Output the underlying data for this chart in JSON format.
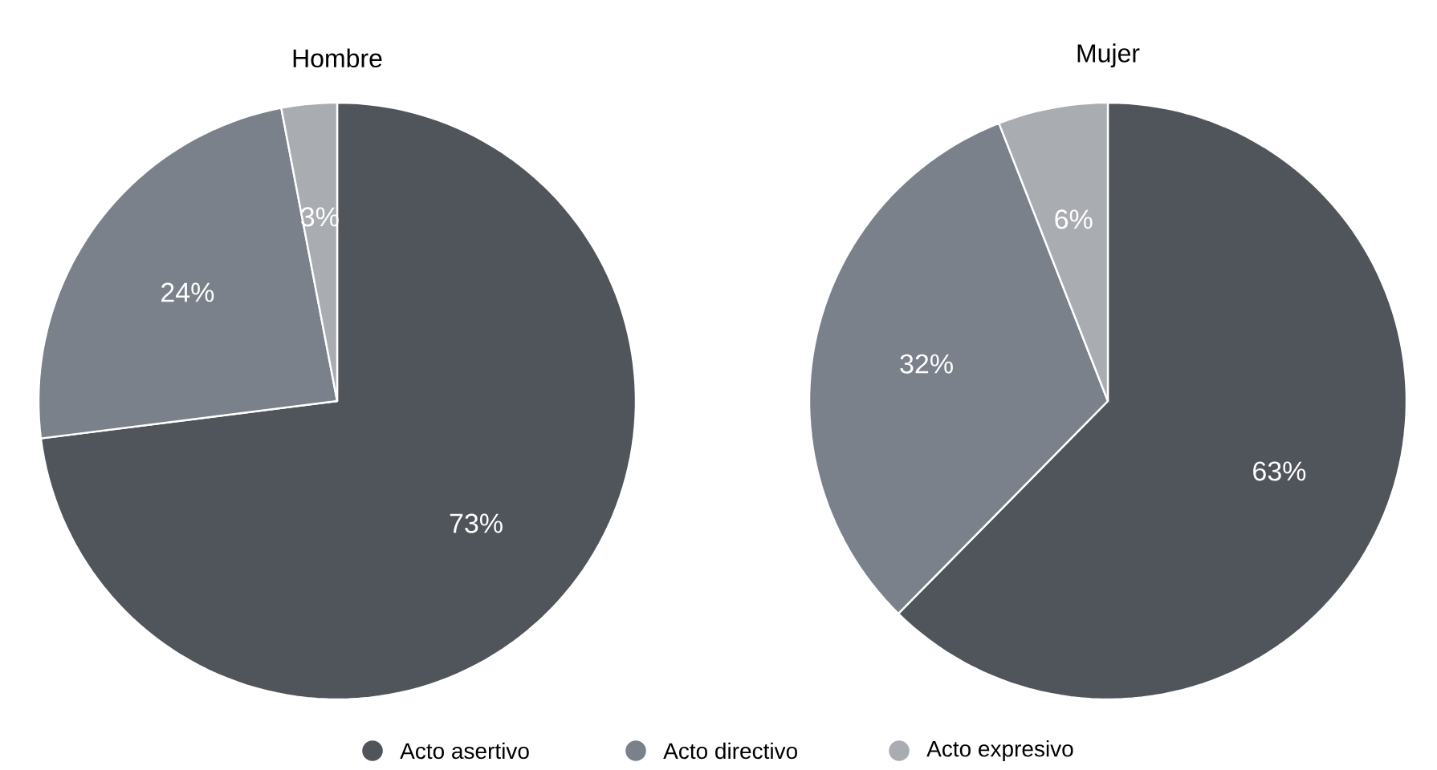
{
  "chart_data": [
    {
      "type": "pie",
      "title": "Hombre",
      "categories": [
        "Acto asertivo",
        "Acto directivo",
        "Acto expresivo"
      ],
      "values": [
        73,
        24,
        3
      ],
      "value_labels": [
        "73%",
        "24%",
        "3%"
      ],
      "colors": [
        "#50545b",
        "#7a818a",
        "#a9adb2"
      ],
      "legend": "bottom"
    },
    {
      "type": "pie",
      "title": "Mujer",
      "values": [
        63,
        32,
        6
      ],
      "value_labels": [
        "63%",
        "32%",
        "6%"
      ],
      "colors": [
        "#50545b",
        "#7a818a",
        "#a9adb2"
      ]
    }
  ]
}
